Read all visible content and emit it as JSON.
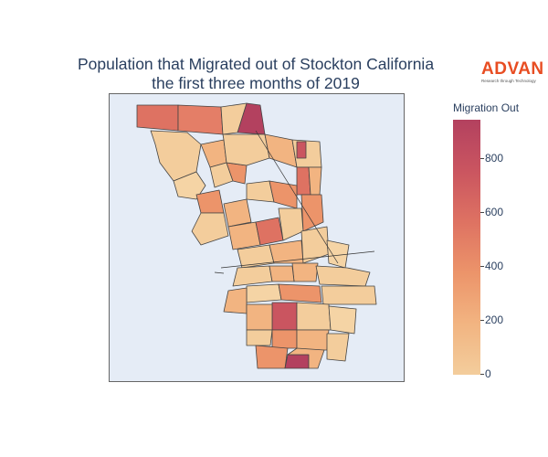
{
  "title_line1": "Population that Migrated out of Stockton California",
  "title_line2": "the first three months of 2019",
  "logo": {
    "name": "ADVAN",
    "tagline": "Research through Technology"
  },
  "colorbar": {
    "title": "Migration Out",
    "ticks": [
      "0",
      "200",
      "400",
      "600",
      "800"
    ],
    "range": [
      0,
      950
    ],
    "colors": [
      "#f3cd9c",
      "#f2b481",
      "#ec946a",
      "#de7262",
      "#ca5560",
      "#b3415f"
    ]
  },
  "map": {
    "background": "#e5ecf6",
    "border": "#444444"
  }
}
